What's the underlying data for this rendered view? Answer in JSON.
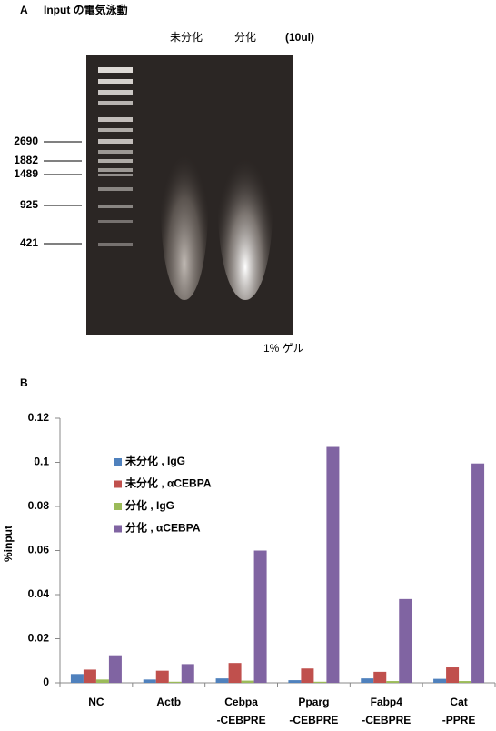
{
  "panel_a": {
    "label": "A",
    "title": "Input の電気泳動",
    "lanes": [
      "未分化",
      "分化"
    ],
    "volume": "(10ul)",
    "markers": [
      "2690",
      "1882",
      "1489",
      "925",
      "421"
    ],
    "gel_note": "1% ゲル"
  },
  "chart_data": {
    "type": "bar",
    "panel_label": "B",
    "ylabel": "%input",
    "categories": [
      "NC",
      "Actb",
      "Cebpa\n-CEBPRE",
      "Pparg\n-CEBPRE",
      "Fabp4\n-CEBPRE",
      "Cat\n-PPRE"
    ],
    "series": [
      {
        "name": "未分化 , IgG",
        "color": "#4f81bd",
        "values": [
          0.004,
          0.0015,
          0.002,
          0.0012,
          0.002,
          0.0018
        ]
      },
      {
        "name": "未分化 , αCEBPA",
        "color": "#c0504d",
        "values": [
          0.006,
          0.0055,
          0.009,
          0.0065,
          0.005,
          0.007
        ]
      },
      {
        "name": "分化 , IgG",
        "color": "#9bbb59",
        "values": [
          0.0015,
          0.0005,
          0.001,
          0.0005,
          0.0008,
          0.0008
        ]
      },
      {
        "name": "分化 , αCEBPA",
        "color": "#8064a2",
        "values": [
          0.0125,
          0.0085,
          0.06,
          0.107,
          0.038,
          0.0995
        ]
      }
    ],
    "ylim": [
      0,
      0.12
    ],
    "yticks": [
      0,
      0.02,
      0.04,
      0.06,
      0.08,
      0.1,
      0.12
    ],
    "grid": false,
    "legend": "upper-left"
  }
}
